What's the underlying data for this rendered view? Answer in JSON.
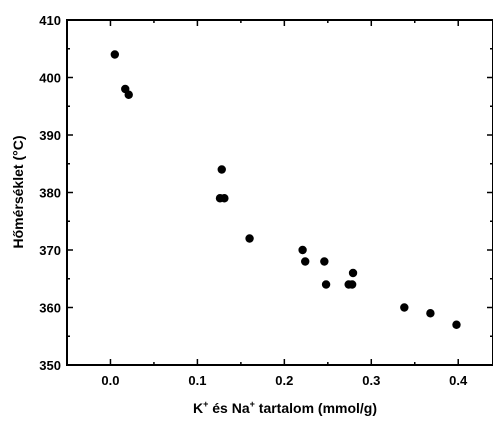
{
  "chart_data": {
    "type": "scatter",
    "xlabel_parts": [
      "K",
      "+",
      " és Na",
      "+",
      " tartalom (mmol/g)"
    ],
    "ylabel": "Hőmérséklet (°C)",
    "xlim": [
      -0.05,
      0.44
    ],
    "ylim": [
      350,
      410
    ],
    "x_ticks": [
      0.0,
      0.1,
      0.2,
      0.3,
      0.4
    ],
    "x_tick_labels": [
      "0.0",
      "0.1",
      "0.2",
      "0.3",
      "0.4"
    ],
    "y_ticks": [
      350,
      360,
      370,
      380,
      390,
      400,
      410
    ],
    "y_tick_labels": [
      "350",
      "360",
      "370",
      "380",
      "390",
      "400",
      "410"
    ],
    "grid": false,
    "marker_color": "#000000",
    "points": [
      {
        "x": 0.005,
        "y": 404
      },
      {
        "x": 0.017,
        "y": 398
      },
      {
        "x": 0.021,
        "y": 397
      },
      {
        "x": 0.128,
        "y": 384
      },
      {
        "x": 0.126,
        "y": 379
      },
      {
        "x": 0.131,
        "y": 379
      },
      {
        "x": 0.16,
        "y": 372
      },
      {
        "x": 0.221,
        "y": 370
      },
      {
        "x": 0.224,
        "y": 368
      },
      {
        "x": 0.246,
        "y": 368
      },
      {
        "x": 0.248,
        "y": 364
      },
      {
        "x": 0.274,
        "y": 364
      },
      {
        "x": 0.278,
        "y": 364
      },
      {
        "x": 0.279,
        "y": 366
      },
      {
        "x": 0.338,
        "y": 360
      },
      {
        "x": 0.368,
        "y": 359
      },
      {
        "x": 0.398,
        "y": 357
      }
    ]
  }
}
